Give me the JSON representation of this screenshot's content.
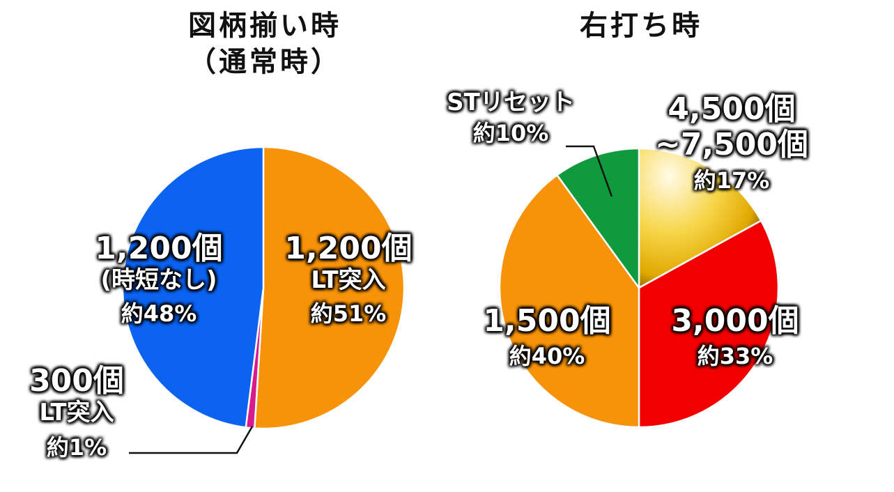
{
  "titles": {
    "left_main": "図柄揃い時",
    "left_sub": "（通常時）",
    "right_main": "右打ち時"
  },
  "chart_data": [
    {
      "type": "pie",
      "title": "図柄揃い時（通常時）",
      "slices": [
        {
          "label_line1": "1,200個",
          "label_line2": "LT突入",
          "percent_label": "約51%",
          "value": 51,
          "color": "#f7930a"
        },
        {
          "label_line1": "300個",
          "label_line2": "LT突入",
          "percent_label": "約1%",
          "value": 1,
          "color": "#d81b8c"
        },
        {
          "label_line1": "1,200個",
          "label_line2": "(時短なし)",
          "percent_label": "約48%",
          "value": 48,
          "color": "#0b63f0"
        }
      ]
    },
    {
      "type": "pie",
      "title": "右打ち時",
      "slices": [
        {
          "label_line1": "4,500個",
          "label_line2": "~7,500個",
          "percent_label": "約17%",
          "value": 17,
          "color": "#e6b800"
        },
        {
          "label_line1": "3,000個",
          "label_line2": "",
          "percent_label": "約33%",
          "value": 33,
          "color": "#f20000"
        },
        {
          "label_line1": "1,500個",
          "label_line2": "",
          "percent_label": "約40%",
          "value": 40,
          "color": "#f7930a"
        },
        {
          "label_line1": "STリセット",
          "label_line2": "",
          "percent_label": "約10%",
          "value": 10,
          "color": "#0f9a3e"
        }
      ]
    }
  ]
}
